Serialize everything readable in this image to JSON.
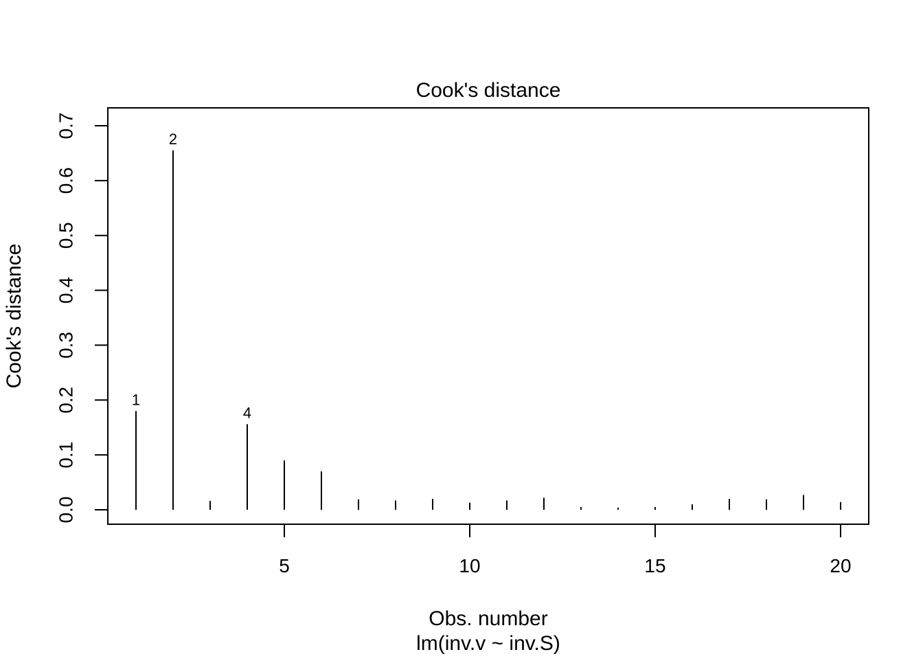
{
  "chart_data": {
    "type": "bar",
    "title": "Cook's distance",
    "xlabel": "Obs. number",
    "subtitle": "lm(inv.v ~ inv.S)",
    "ylabel": "Cook's distance",
    "x": [
      1,
      2,
      3,
      4,
      5,
      6,
      7,
      8,
      9,
      10,
      11,
      12,
      13,
      14,
      15,
      16,
      17,
      18,
      19,
      20
    ],
    "values": [
      0.18,
      0.655,
      0.016,
      0.156,
      0.09,
      0.07,
      0.019,
      0.017,
      0.02,
      0.013,
      0.017,
      0.022,
      0.005,
      0.004,
      0.005,
      0.01,
      0.02,
      0.019,
      0.027,
      0.014
    ],
    "labeled_points": [
      1,
      2,
      4
    ],
    "xticks": [
      5,
      10,
      15,
      20
    ],
    "yticks": [
      0.0,
      0.1,
      0.2,
      0.3,
      0.4,
      0.5,
      0.6,
      0.7
    ],
    "xlim": [
      1,
      20
    ],
    "ylim": [
      0.0,
      0.7
    ],
    "grid": false,
    "legend": false,
    "bar_color": "#000000",
    "axis_color": "#000000",
    "background_color": "#ffffff"
  }
}
